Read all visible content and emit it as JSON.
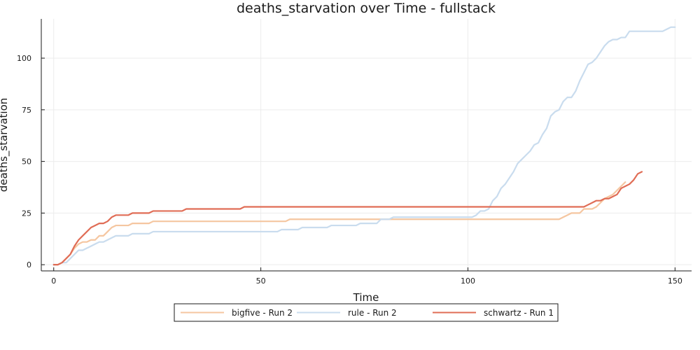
{
  "chart_data": {
    "type": "line",
    "title": "deaths_starvation over Time - fullstack",
    "xlabel": "Time",
    "ylabel": "deaths_starvation",
    "xlim": [
      -3,
      154
    ],
    "ylim": [
      -3,
      119
    ],
    "xticks": [
      0,
      50,
      100,
      150
    ],
    "yticks": [
      0,
      25,
      50,
      75,
      100
    ],
    "grid": true,
    "legend_position": "bottom",
    "series": [
      {
        "name": "bigfive - Run 2",
        "color": "#f5c6a0",
        "points": [
          [
            0,
            0
          ],
          [
            1,
            0
          ],
          [
            2,
            1
          ],
          [
            3,
            3
          ],
          [
            4,
            5
          ],
          [
            5,
            8
          ],
          [
            6,
            10
          ],
          [
            7,
            11
          ],
          [
            8,
            11
          ],
          [
            9,
            12
          ],
          [
            10,
            12
          ],
          [
            11,
            14
          ],
          [
            12,
            14
          ],
          [
            13,
            16
          ],
          [
            14,
            18
          ],
          [
            15,
            19
          ],
          [
            16,
            19
          ],
          [
            18,
            19
          ],
          [
            19,
            20
          ],
          [
            23,
            20
          ],
          [
            24,
            21
          ],
          [
            56,
            21
          ],
          [
            57,
            22
          ],
          [
            122,
            22
          ],
          [
            123,
            23
          ],
          [
            124,
            24
          ],
          [
            125,
            25
          ],
          [
            127,
            25
          ],
          [
            128,
            27
          ],
          [
            130,
            27
          ],
          [
            131,
            28
          ],
          [
            132,
            30
          ],
          [
            133,
            32
          ],
          [
            134,
            33
          ],
          [
            135,
            34
          ],
          [
            136,
            36
          ],
          [
            137,
            38
          ],
          [
            138,
            40
          ]
        ]
      },
      {
        "name": "rule - Run 2",
        "color": "#c9dcee",
        "points": [
          [
            0,
            0
          ],
          [
            1,
            0
          ],
          [
            2,
            1
          ],
          [
            3,
            1
          ],
          [
            4,
            3
          ],
          [
            5,
            5
          ],
          [
            6,
            7
          ],
          [
            7,
            7
          ],
          [
            8,
            8
          ],
          [
            9,
            9
          ],
          [
            10,
            10
          ],
          [
            11,
            11
          ],
          [
            12,
            11
          ],
          [
            13,
            12
          ],
          [
            14,
            13
          ],
          [
            15,
            14
          ],
          [
            18,
            14
          ],
          [
            19,
            15
          ],
          [
            23,
            15
          ],
          [
            24,
            16
          ],
          [
            54,
            16
          ],
          [
            55,
            17
          ],
          [
            59,
            17
          ],
          [
            60,
            18
          ],
          [
            66,
            18
          ],
          [
            67,
            19
          ],
          [
            73,
            19
          ],
          [
            74,
            20
          ],
          [
            78,
            20
          ],
          [
            79,
            22
          ],
          [
            81,
            22
          ],
          [
            82,
            23
          ],
          [
            101,
            23
          ],
          [
            102,
            24
          ],
          [
            103,
            26
          ],
          [
            104,
            26
          ],
          [
            105,
            27
          ],
          [
            106,
            31
          ],
          [
            107,
            33
          ],
          [
            108,
            37
          ],
          [
            109,
            39
          ],
          [
            110,
            42
          ],
          [
            111,
            45
          ],
          [
            112,
            49
          ],
          [
            113,
            51
          ],
          [
            114,
            53
          ],
          [
            115,
            55
          ],
          [
            116,
            58
          ],
          [
            117,
            59
          ],
          [
            118,
            63
          ],
          [
            119,
            66
          ],
          [
            120,
            72
          ],
          [
            121,
            74
          ],
          [
            122,
            75
          ],
          [
            123,
            79
          ],
          [
            124,
            81
          ],
          [
            125,
            81
          ],
          [
            126,
            84
          ],
          [
            127,
            89
          ],
          [
            128,
            93
          ],
          [
            129,
            97
          ],
          [
            130,
            98
          ],
          [
            131,
            100
          ],
          [
            132,
            103
          ],
          [
            133,
            106
          ],
          [
            134,
            108
          ],
          [
            135,
            109
          ],
          [
            136,
            109
          ],
          [
            137,
            110
          ],
          [
            138,
            110
          ],
          [
            139,
            113
          ],
          [
            147,
            113
          ],
          [
            148,
            114
          ],
          [
            149,
            115
          ],
          [
            150,
            115
          ]
        ]
      },
      {
        "name": "schwartz - Run 1",
        "color": "#e06d56",
        "points": [
          [
            0,
            0
          ],
          [
            1,
            0
          ],
          [
            2,
            1
          ],
          [
            3,
            3
          ],
          [
            4,
            5
          ],
          [
            5,
            9
          ],
          [
            6,
            12
          ],
          [
            7,
            14
          ],
          [
            8,
            16
          ],
          [
            9,
            18
          ],
          [
            10,
            19
          ],
          [
            11,
            20
          ],
          [
            12,
            20
          ],
          [
            13,
            21
          ],
          [
            14,
            23
          ],
          [
            15,
            24
          ],
          [
            18,
            24
          ],
          [
            19,
            25
          ],
          [
            23,
            25
          ],
          [
            24,
            26
          ],
          [
            31,
            26
          ],
          [
            32,
            27
          ],
          [
            45,
            27
          ],
          [
            46,
            28
          ],
          [
            128,
            28
          ],
          [
            129,
            29
          ],
          [
            130,
            30
          ],
          [
            131,
            31
          ],
          [
            132,
            31
          ],
          [
            133,
            32
          ],
          [
            134,
            32
          ],
          [
            135,
            33
          ],
          [
            136,
            34
          ],
          [
            137,
            37
          ],
          [
            138,
            38
          ],
          [
            139,
            39
          ],
          [
            140,
            41
          ],
          [
            141,
            44
          ],
          [
            142,
            45
          ]
        ]
      }
    ]
  }
}
